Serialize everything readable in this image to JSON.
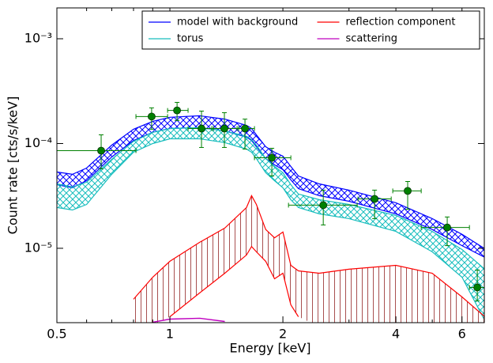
{
  "chart_data": {
    "type": "spectrum",
    "xlabel": "Energy [keV]",
    "ylabel": "Count rate [cts/s/keV]",
    "xscale": "log",
    "yscale": "log",
    "xlim": [
      0.5,
      6.88
    ],
    "ylim": [
      1.95e-06,
      0.00197
    ],
    "xticks": [
      0.5,
      1,
      2,
      4,
      6
    ],
    "xminorticks": [
      0.6,
      0.7,
      0.8,
      0.9,
      3,
      5
    ],
    "yticks": [
      {
        "value": 1e-05,
        "label": "10⁻⁵"
      },
      {
        "value": 0.0001,
        "label": "10⁻⁴"
      },
      {
        "value": 0.001,
        "label": "10⁻³"
      }
    ],
    "legend": "upper right",
    "legend_columns": 2,
    "x": [
      0.5,
      0.55,
      0.6,
      0.7,
      0.8,
      0.9,
      1.0,
      1.2,
      1.4,
      1.6,
      1.65,
      1.7,
      1.8,
      1.9,
      2.0,
      2.1,
      2.2,
      2.5,
      3.0,
      4.0,
      5.0,
      6.0,
      6.9
    ],
    "series": [
      {
        "name": "model with background",
        "color": "#0000ff",
        "hatch": "#0000ff",
        "upper": [
          5.35e-05,
          5.08e-05,
          5.83e-05,
          9.66e-05,
          0.000137,
          0.000163,
          0.000178,
          0.000184,
          0.000171,
          0.000149,
          0.000139,
          0.000121,
          9.33e-05,
          8.26e-05,
          7.57e-05,
          6.04e-05,
          4.9e-05,
          4.12e-05,
          3.59e-05,
          2.72e-05,
          1.92e-05,
          1.36e-05,
          9.91e-06
        ],
        "lower": [
          4.05e-05,
          3.78e-05,
          4.42e-05,
          7.44e-05,
          0.000107,
          0.000128,
          0.000139,
          0.000142,
          0.000132,
          0.000115,
          0.000107,
          9.33e-05,
          7.19e-05,
          6.26e-05,
          5.63e-05,
          4.5e-05,
          3.71e-05,
          3.18e-05,
          2.81e-05,
          2.13e-05,
          1.51e-05,
          1.06e-05,
          8.19e-06
        ]
      },
      {
        "name": "torus",
        "color": "#17bdbd",
        "hatch": "#17bdbd",
        "upper": [
          4.12e-05,
          3.85e-05,
          4.27e-05,
          7.06e-05,
          0.000105,
          0.000128,
          0.000139,
          0.000142,
          0.000132,
          0.000117,
          0.000109,
          9.66e-05,
          7.19e-05,
          6.04e-05,
          5.26e-05,
          4.05e-05,
          3.29e-05,
          2.91e-05,
          2.62e-05,
          2.06e-05,
          1.45e-05,
          9.74e-06,
          6.31e-06
        ],
        "lower": [
          2.45e-05,
          2.32e-05,
          2.62e-05,
          5.08e-05,
          8.26e-05,
          0.0001,
          0.000111,
          0.000111,
          0.000102,
          8.85e-05,
          8.26e-05,
          7.19e-05,
          5.26e-05,
          4.42e-05,
          3.78e-05,
          2.91e-05,
          2.45e-05,
          2.13e-05,
          1.92e-05,
          1.45e-05,
          9.25e-06,
          5.3e-06,
          2.04e-06
        ]
      },
      {
        "name": "reflection component",
        "color": "#ff0000",
        "hatch": "#a85050",
        "upper": [
          null,
          null,
          null,
          null,
          3.26e-06,
          5.3e-06,
          7.51e-06,
          1.14e-05,
          1.56e-05,
          2.45e-05,
          3.18e-05,
          2.62e-05,
          1.51e-05,
          1.26e-05,
          1.43e-05,
          6.88e-06,
          6.09e-06,
          5.78e-06,
          6.31e-06,
          6.88e-06,
          5.78e-06,
          3.43e-06,
          2.22e-06
        ],
        "lower": [
          null,
          null,
          null,
          null,
          null,
          null,
          2.22e-06,
          3.75e-06,
          5.78e-06,
          8.63e-06,
          1.04e-05,
          9.25e-06,
          7.51e-06,
          5.12e-06,
          5.78e-06,
          2.89e-06,
          2.22e-06,
          null,
          null,
          null,
          null,
          null,
          null
        ]
      },
      {
        "name": "scattering",
        "color": "#bf00bf",
        "values": [
          null,
          null,
          null,
          null,
          null,
          1.97e-06,
          2.11e-06,
          2.15e-06,
          2e-06,
          null,
          null,
          null,
          null,
          null,
          null,
          null,
          null,
          null,
          null,
          null,
          null,
          null,
          null
        ]
      }
    ],
    "points": {
      "color": "#008000",
      "x": [
        0.656,
        0.894,
        1.045,
        1.214,
        1.397,
        1.585,
        1.869,
        2.562,
        3.51,
        4.3,
        5.48,
        6.59
      ],
      "x_low": [
        0.5,
        0.812,
        0.986,
        1.118,
        1.293,
        1.51,
        1.68,
        2.07,
        3.17,
        3.924,
        4.672,
        6.28
      ],
      "x_high": [
        0.812,
        0.986,
        1.118,
        1.306,
        1.525,
        1.68,
        2.1,
        3.155,
        3.887,
        4.672,
        6.28,
        6.88
      ],
      "y": [
        8.55e-05,
        0.000181,
        0.000207,
        0.000139,
        0.000139,
        0.000139,
        7.31e-05,
        2.58e-05,
        2.96e-05,
        3.53e-05,
        1.58e-05,
        4.23e-06
      ],
      "y_low": [
        5.73e-05,
        0.000137,
        0.000166,
        9.17e-05,
        9.17e-05,
        8.85e-05,
        4.9e-05,
        1.67e-05,
        1.92e-05,
        2.36e-05,
        1.06e-05,
        3.15e-06
      ],
      "y_high": [
        0.000121,
        0.000219,
        0.000247,
        0.000204,
        0.000197,
        0.000171,
        9.01e-05,
        3.59e-05,
        3.59e-05,
        4.34e-05,
        1.99e-05,
        6.2e-06
      ]
    }
  }
}
